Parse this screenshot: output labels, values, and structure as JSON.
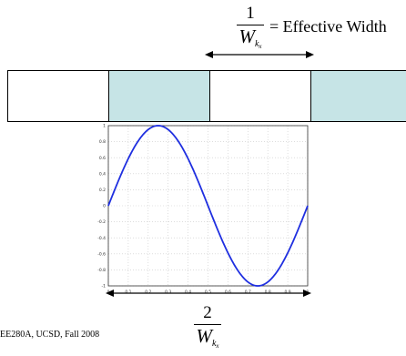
{
  "top_label": {
    "numerator": "1",
    "denominator": "W",
    "sub": "k",
    "subsub": "x",
    "equals_text": "= Effective Width"
  },
  "strip": {
    "cells": [
      {
        "fill": "#ffffff"
      },
      {
        "fill": "#c6e4e6"
      },
      {
        "fill": "#ffffff"
      },
      {
        "fill": "#c6e4e6"
      }
    ]
  },
  "bottom_label": {
    "numerator": "2",
    "denominator": "W",
    "sub": "k",
    "subsub": "x"
  },
  "footer": "EE280A, UCSD, Fall 2008",
  "chart_data": {
    "type": "line",
    "function": "sin(2*pi*x)",
    "xlim": [
      0,
      1
    ],
    "ylim": [
      -1,
      1
    ],
    "x_ticks": [
      "0",
      "0.1",
      "0.2",
      "0.3",
      "0.4",
      "0.5",
      "0.6",
      "0.7",
      "0.8",
      "0.9",
      "1"
    ],
    "y_ticks": [
      "1",
      "0.8",
      "0.6",
      "0.4",
      "0.2",
      "0",
      "-0.2",
      "-0.4",
      "-0.6",
      "-0.8",
      "-1"
    ],
    "grid": true,
    "line_color": "#1f2fe0",
    "series": [
      {
        "x": [
          0,
          0.05,
          0.1,
          0.15,
          0.2,
          0.25,
          0.3,
          0.35,
          0.4,
          0.45,
          0.5,
          0.55,
          0.6,
          0.65,
          0.7,
          0.75,
          0.8,
          0.85,
          0.9,
          0.95,
          1
        ],
        "y": [
          0,
          0.309,
          0.588,
          0.809,
          0.951,
          1,
          0.951,
          0.809,
          0.588,
          0.309,
          0,
          -0.309,
          -0.588,
          -0.809,
          -0.951,
          -1,
          -0.951,
          -0.809,
          -0.588,
          -0.309,
          0
        ]
      }
    ]
  }
}
